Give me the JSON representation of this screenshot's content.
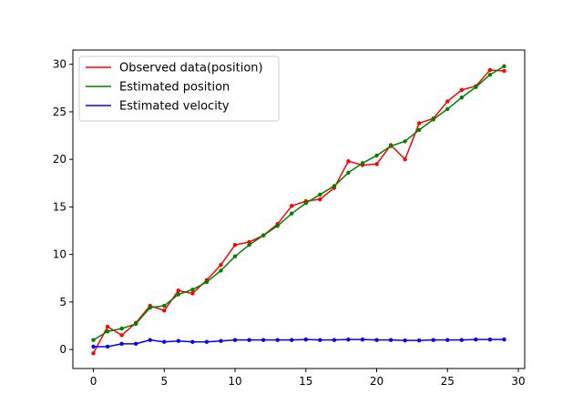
{
  "chart_data": {
    "type": "line",
    "title": "",
    "xlabel": "",
    "ylabel": "",
    "xlim": [
      -1.45,
      30.45
    ],
    "ylim": [
      -2.0,
      31.5
    ],
    "xticks": [
      0,
      5,
      10,
      15,
      20,
      25,
      30
    ],
    "yticks": [
      0,
      5,
      10,
      15,
      20,
      25,
      30
    ],
    "grid": false,
    "legend_position": "top-left",
    "x": [
      0,
      1,
      2,
      3,
      4,
      5,
      6,
      7,
      8,
      9,
      10,
      11,
      12,
      13,
      14,
      15,
      16,
      17,
      18,
      19,
      20,
      21,
      22,
      23,
      24,
      25,
      26,
      27,
      28,
      29
    ],
    "series": [
      {
        "name": "Observed data(position)",
        "color": "#ff0000",
        "values": [
          -0.4,
          2.4,
          1.5,
          2.8,
          4.6,
          4.1,
          6.2,
          5.9,
          7.3,
          8.9,
          11.0,
          11.3,
          12.0,
          13.2,
          15.1,
          15.6,
          15.8,
          17.0,
          19.8,
          19.4,
          19.5,
          21.5,
          20.0,
          23.8,
          24.3,
          26.1,
          27.3,
          27.7,
          29.4,
          29.3
        ]
      },
      {
        "name": "Estimated position",
        "color": "#008000",
        "values": [
          1.0,
          1.9,
          2.2,
          2.7,
          4.4,
          4.6,
          5.8,
          6.3,
          7.1,
          8.3,
          9.8,
          11.0,
          12.0,
          13.0,
          14.3,
          15.4,
          16.3,
          17.2,
          18.6,
          19.6,
          20.4,
          21.4,
          21.9,
          23.1,
          24.2,
          25.3,
          26.5,
          27.6,
          28.9,
          29.8
        ]
      },
      {
        "name": "Estimated velocity",
        "color": "#0000ff",
        "values": [
          0.3,
          0.3,
          0.6,
          0.6,
          1.0,
          0.8,
          0.9,
          0.8,
          0.8,
          0.9,
          1.0,
          1.0,
          1.0,
          1.0,
          1.0,
          1.05,
          1.0,
          1.0,
          1.05,
          1.05,
          1.0,
          1.0,
          0.95,
          0.95,
          1.0,
          1.0,
          1.0,
          1.05,
          1.05,
          1.05
        ]
      }
    ]
  }
}
